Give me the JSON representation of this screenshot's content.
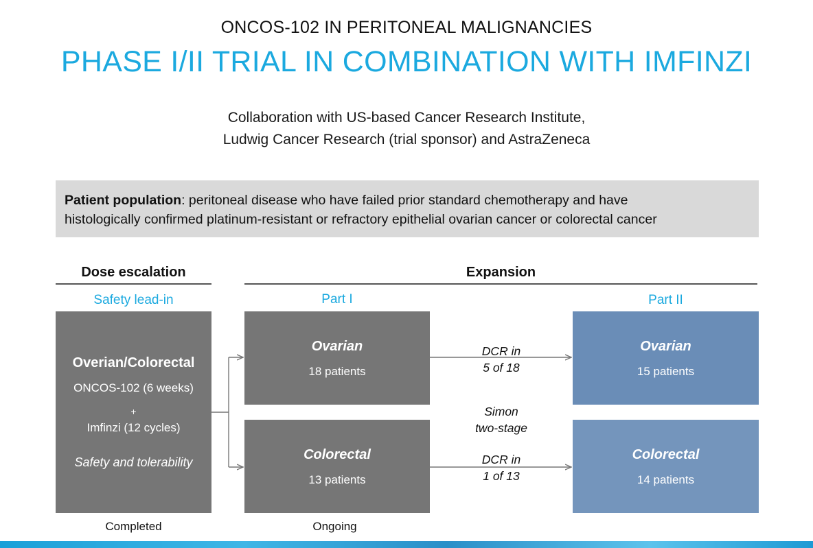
{
  "title": {
    "line1": "ONCOS-102 IN PERITONEAL MALIGNANCIES",
    "line2": "PHASE I/II TRIAL IN COMBINATION WITH IMFINZI"
  },
  "collaboration": {
    "line1": "Collaboration with US-based Cancer Research Institute,",
    "line2": "Ludwig Cancer Research (trial sponsor) and AstraZeneca"
  },
  "population": {
    "label": "Patient population",
    "text_line1": ": peritoneal disease who have failed prior standard chemotherapy and have",
    "text_line2": "histologically confirmed platinum-resistant or refractory epithelial ovarian cancer or colorectal cancer"
  },
  "dose_escalation": {
    "header": "Dose escalation",
    "subheader": "Safety lead-in",
    "box_title": "Overian/Colorectal",
    "drug1": "ONCOS-102 (6 weeks)",
    "plus": "+",
    "drug2": "Imfinzi (12 cycles)",
    "endpoint": "Safety and tolerability",
    "status": "Completed"
  },
  "expansion": {
    "header": "Expansion",
    "part1": {
      "label": "Part I",
      "status": "Ongoing",
      "ovarian": {
        "title": "Ovarian",
        "patients": "18 patients"
      },
      "colorectal": {
        "title": "Colorectal",
        "patients": "13 patients"
      }
    },
    "middle": {
      "dcr_ovarian_line1": "DCR in",
      "dcr_ovarian_line2": "5 of 18",
      "design_line1": "Simon",
      "design_line2": "two-stage",
      "dcr_colorectal_line1": "DCR in",
      "dcr_colorectal_line2": "1 of 13"
    },
    "part2": {
      "label": "Part II",
      "ovarian": {
        "title": "Ovarian",
        "patients": "15 patients"
      },
      "colorectal": {
        "title": "Colorectal",
        "patients": "14 patients"
      }
    }
  },
  "colors": {
    "accent": "#1ba9df",
    "gray_box": "#767676",
    "blue_box": "#6a8db7",
    "population_bg": "#d9d9d9"
  }
}
